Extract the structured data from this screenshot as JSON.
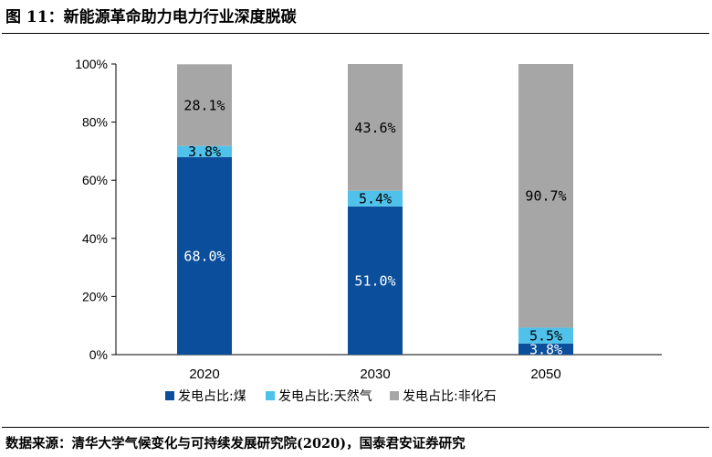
{
  "figure": {
    "title": "图 11：新能源革命助力电力行业深度脱碳",
    "source": "数据来源：清华大学气候变化与可持续发展研究院(2020)，国泰君安证券研究"
  },
  "chart_data": {
    "type": "bar",
    "stacked": true,
    "categories": [
      "2020",
      "2030",
      "2050"
    ],
    "series": [
      {
        "name": "发电占比:煤",
        "values": [
          68.0,
          51.0,
          3.8
        ],
        "labels": [
          "68.0%",
          "51.0%",
          "3.8%"
        ],
        "color": "#0b4f9c",
        "label_color": "#ffffff"
      },
      {
        "name": "发电占比:天然气",
        "values": [
          3.8,
          5.4,
          5.5
        ],
        "labels": [
          "3.8%",
          "5.4%",
          "5.5%"
        ],
        "color": "#4fc1ea",
        "label_color": "#000000"
      },
      {
        "name": "发电占比:非化石",
        "values": [
          28.1,
          43.6,
          90.7
        ],
        "labels": [
          "28.1%",
          "43.6%",
          "90.7%"
        ],
        "color": "#a6a6a6",
        "label_color": "#000000"
      }
    ],
    "yticks": [
      "0%",
      "20%",
      "40%",
      "60%",
      "80%",
      "100%"
    ],
    "ylim": [
      0,
      100
    ],
    "grid": false,
    "legend": "bottom"
  }
}
